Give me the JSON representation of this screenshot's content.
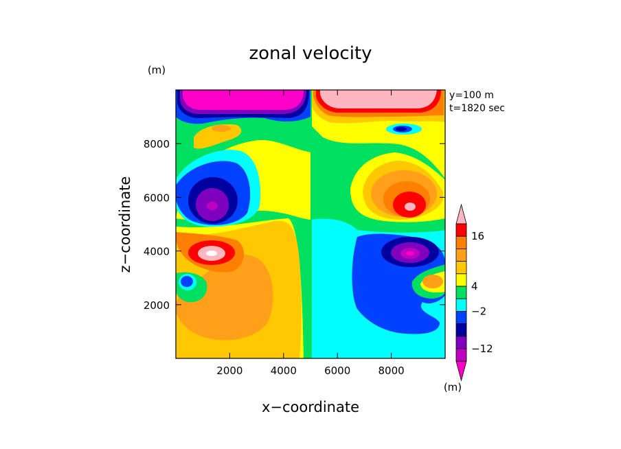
{
  "chart_data": {
    "type": "heatmap",
    "title": "zonal velocity",
    "xlabel": "x−coordinate",
    "ylabel": "z−coordinate",
    "x_unit": "(m)",
    "y_unit": "(m)",
    "colorbar_unit": "(m)",
    "annotations": [
      "y=100 m",
      "t=1820 sec"
    ],
    "xlim": [
      0,
      10000
    ],
    "ylim": [
      0,
      10000
    ],
    "x_ticks": [
      2000,
      4000,
      6000,
      8000
    ],
    "y_ticks": [
      2000,
      4000,
      6000,
      8000
    ],
    "x_tick_labels": [
      "2000",
      "4000",
      "6000",
      "8000"
    ],
    "y_tick_labels": [
      "2000",
      "4000",
      "6000",
      "8000"
    ],
    "colorbar": {
      "labels": [
        "16",
        "4",
        "−2",
        "−12"
      ],
      "extend": "both",
      "colors": [
        "#ffb6c1",
        "#ff0000",
        "#ff7f00",
        "#ff9f1a",
        "#ffc800",
        "#ffff00",
        "#00e060",
        "#00ffff",
        "#0040ff",
        "#0000a0",
        "#8000c0",
        "#c000c0",
        "#ff00c8"
      ]
    },
    "fill_levels": {
      "pink": "#ffb6c1",
      "red": "#ff0000",
      "orange": "#ff7f00",
      "lightorange": "#ff9f1a",
      "gold": "#ffc800",
      "yellow": "#ffff00",
      "green": "#00e060",
      "cyan": "#00ffff",
      "blue": "#0040ff",
      "navy": "#0000a0",
      "purple": "#8000c0",
      "violet": "#c000c0",
      "magenta": "#ff00c8"
    }
  }
}
